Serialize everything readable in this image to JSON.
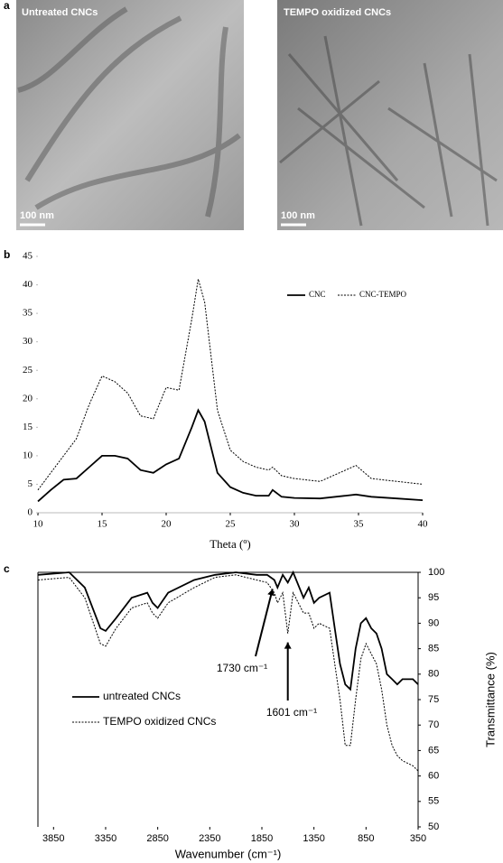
{
  "panel_labels": [
    "a",
    "b",
    "c"
  ],
  "images": [
    {
      "label": "Untreated CNCs",
      "scale_bar": "100 nm"
    },
    {
      "label": "TEMPO oxidized CNCs",
      "scale_bar": "100 nm"
    }
  ],
  "chart_data": [
    {
      "type": "line",
      "xlabel": "Theta (º)",
      "legend": "upper right",
      "x": [
        10,
        11,
        12,
        13,
        14,
        15,
        16,
        17,
        18,
        19,
        20,
        21,
        22,
        22.5,
        23,
        24,
        25,
        26,
        27,
        28,
        28.3,
        29,
        30,
        32,
        34,
        34.8,
        36,
        38,
        40
      ],
      "series": [
        {
          "name": "CNC",
          "color": "#000000",
          "style": "solid",
          "values": [
            2,
            4,
            5.8,
            6,
            8,
            10,
            10,
            9.5,
            7.5,
            7,
            8.5,
            9.5,
            15,
            18,
            16,
            7,
            4.5,
            3.5,
            3,
            3,
            4,
            2.8,
            2.6,
            2.5,
            3,
            3.2,
            2.8,
            2.5,
            2.2
          ]
        },
        {
          "name": "CNC-TEMPO",
          "color": "#000000",
          "style": "dotted",
          "values": [
            4,
            7,
            10,
            13,
            19,
            24,
            23,
            21,
            17,
            16.5,
            22,
            21.5,
            34,
            41,
            37,
            18,
            11,
            9,
            8,
            7.5,
            8,
            6.5,
            6,
            5.5,
            7.5,
            8.3,
            6,
            5.5,
            5
          ]
        }
      ],
      "xlim": [
        10,
        40
      ],
      "xticks": [
        10,
        15,
        20,
        25,
        30,
        35,
        40
      ],
      "ylim": [
        0,
        45
      ],
      "yticks": [
        0,
        5,
        10,
        15,
        20,
        25,
        30,
        35,
        40,
        45
      ]
    },
    {
      "type": "line",
      "xlabel": "Wavenumber (cm⁻¹)",
      "ylabel": "Transmittance (%)",
      "legend": "center left",
      "y_axis_side": "right",
      "x": [
        4000,
        3700,
        3550,
        3400,
        3350,
        3250,
        3100,
        2950,
        2900,
        2850,
        2750,
        2500,
        2300,
        2100,
        1900,
        1800,
        1730,
        1700,
        1650,
        1601,
        1550,
        1450,
        1400,
        1350,
        1300,
        1200,
        1150,
        1100,
        1050,
        1000,
        950,
        900,
        850,
        800,
        750,
        700,
        650,
        600,
        550,
        500,
        400,
        350
      ],
      "series": [
        {
          "name": "untreated CNCs",
          "color": "#000000",
          "style": "solid",
          "values": [
            99.5,
            100,
            97,
            89,
            88.5,
            91,
            95,
            96,
            94,
            93,
            96,
            98.5,
            99.5,
            100,
            99.5,
            99.5,
            98.5,
            97,
            99.5,
            98,
            100,
            95,
            97,
            94,
            95,
            96,
            89,
            82,
            78,
            77,
            85,
            90,
            91,
            89,
            88,
            85,
            80,
            79,
            78,
            79,
            79,
            78
          ]
        },
        {
          "name": "TEMPO oxidized CNCs",
          "color": "#000000",
          "style": "dotted",
          "values": [
            98.5,
            99,
            95,
            86,
            85.5,
            89,
            93,
            94,
            92,
            91,
            94,
            97,
            99,
            99.5,
            98.5,
            98,
            96,
            94,
            96,
            88,
            96,
            92,
            92,
            89,
            90,
            89,
            82,
            75,
            66,
            66,
            75,
            83,
            86,
            84,
            82,
            77,
            70,
            66,
            64,
            63,
            62,
            61
          ]
        }
      ],
      "annotations": [
        {
          "text": "1730 cm⁻¹",
          "x": 1730
        },
        {
          "text": "1601 cm⁻¹",
          "x": 1601
        }
      ],
      "xlim": [
        4000,
        350
      ],
      "xticks": [
        3850,
        3350,
        2850,
        2350,
        1850,
        1350,
        850,
        350
      ],
      "ylim": [
        50,
        100
      ],
      "yticks": [
        50,
        55,
        60,
        65,
        70,
        75,
        80,
        85,
        90,
        95,
        100
      ]
    }
  ]
}
